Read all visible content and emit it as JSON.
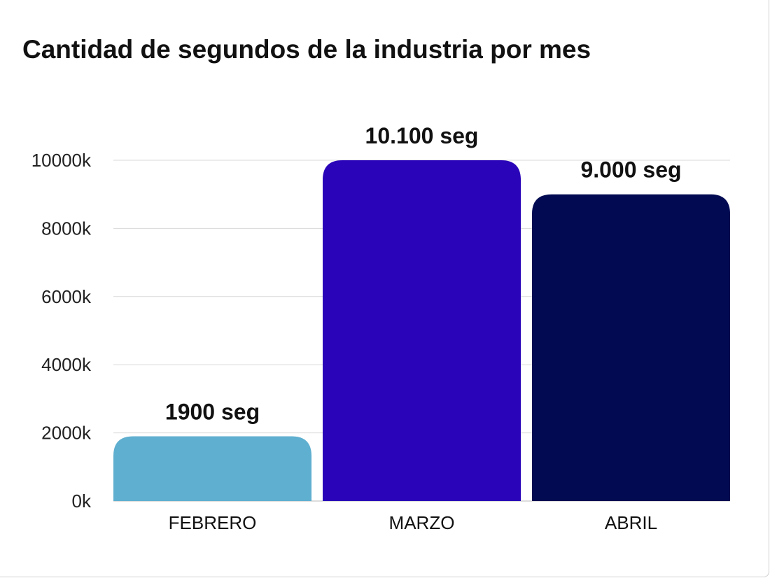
{
  "chart_data": {
    "type": "bar",
    "title": "Cantidad de segundos de la industria por mes",
    "xlabel": "",
    "ylabel": "",
    "categories": [
      "FEBRERO",
      "MARZO",
      "ABRIL"
    ],
    "values": [
      1900,
      10100,
      9000
    ],
    "data_labels": [
      "1900 seg",
      "10.100 seg",
      "9.000 seg"
    ],
    "colors": [
      "#5fafd0",
      "#2a04b8",
      "#020b52"
    ],
    "ylim": [
      0,
      10000
    ],
    "yticks": [
      0,
      2000,
      4000,
      6000,
      8000,
      10000
    ],
    "ytick_labels": [
      "0k",
      "2000k",
      "4000k",
      "6000k",
      "8000k",
      "10000k"
    ],
    "grid": true,
    "legend": "none"
  }
}
